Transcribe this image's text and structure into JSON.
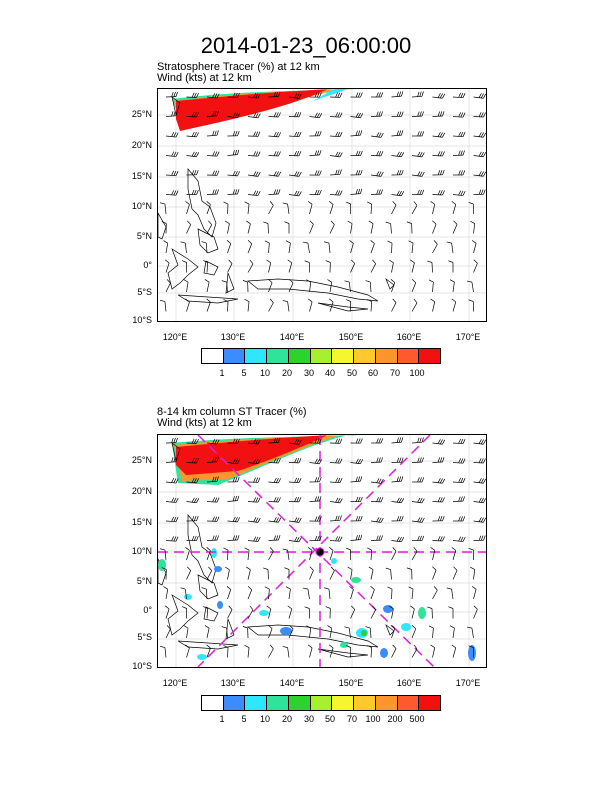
{
  "title": "2014-01-23_06:00:00",
  "panels": [
    {
      "subtitle_line1": "Stratosphere Tracer   (%)      at   12 km",
      "subtitle_line2": "Wind    (kts)      at   12 km",
      "colorbar_labels": [
        "1",
        "5",
        "10",
        "20",
        "30",
        "40",
        "50",
        "60",
        "70",
        "100"
      ],
      "colorbar_colors": [
        "#ffffff",
        "#3a8cff",
        "#2fe6ff",
        "#2fe39b",
        "#2ed22e",
        "#a8f02d",
        "#f6f62e",
        "#ffc82d",
        "#ff962d",
        "#ff5a2d",
        "#f21010"
      ]
    },
    {
      "subtitle_line1": "8-14 km column ST Tracer    (%)",
      "subtitle_line2": "Wind    (kts)      at   12 km",
      "colorbar_labels": [
        "1",
        "5",
        "10",
        "20",
        "30",
        "50",
        "70",
        "100",
        "200",
        "500"
      ],
      "colorbar_colors": [
        "#ffffff",
        "#3a8cff",
        "#2fe6ff",
        "#2fe39b",
        "#2ed22e",
        "#a8f02d",
        "#f6f62e",
        "#ffc82d",
        "#ff962d",
        "#ff5a2d",
        "#f21010"
      ]
    }
  ],
  "lat_labels": [
    "25°N",
    "20°N",
    "15°N",
    "10°N",
    "5°N",
    "0°",
    "5°S",
    "10°S"
  ],
  "lon_labels": [
    "120°E",
    "130°E",
    "140°E",
    "150°E",
    "160°E",
    "170°E"
  ]
}
